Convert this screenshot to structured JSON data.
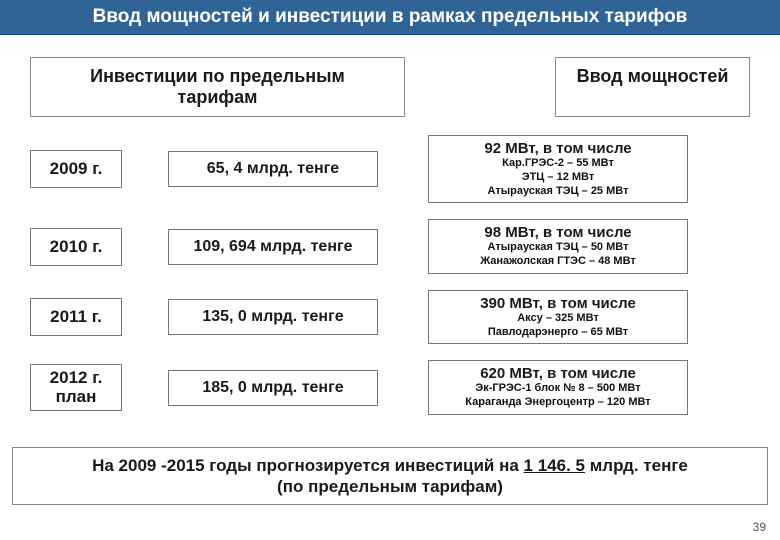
{
  "title": "Ввод мощностей и инвестиции в рамках предельных тарифов",
  "subheader_left": "Инвестиции по предельным тарифам",
  "subheader_right": "Ввод мощностей",
  "rows": [
    {
      "year": "2009 г.",
      "amount": "65, 4 млрд. тенге",
      "title": "92 МВт, в том числе",
      "d1": "Кар.ГРЭС-2 – 55  МВт",
      "d2": "ЭТЦ – 12 МВт",
      "d3": "Атырауская ТЭЦ – 25 МВт"
    },
    {
      "year": "2010 г.",
      "amount": "109, 694 млрд. тенге",
      "title": "98 МВт, в том числе",
      "d1": "Атырауская ТЭЦ – 50 МВт",
      "d2": "Жанажолская ГТЭС – 48 МВт",
      "d3": ""
    },
    {
      "year": "2011 г.",
      "amount": "135, 0 млрд. тенге",
      "title": "390 МВт, в том числе",
      "d1": "Аксу – 325 МВт",
      "d2": "Павлодарэнерго – 65 МВт",
      "d3": ""
    },
    {
      "year": "2012 г. план",
      "amount": "185, 0 млрд. тенге",
      "title": "620 МВт, в том числе",
      "d1": "Эк-ГРЭС-1 блок № 8 – 500 МВт",
      "d2": "Караганда Энергоцентр – 120 МВт",
      "d3": ""
    }
  ],
  "forecast_a": "На 2009 -2015 годы прогнозируется инвестиций на ",
  "forecast_u": "1 146. 5",
  "forecast_b": " млрд. тенге",
  "forecast_c": "(по предельным тарифам)",
  "page": "39"
}
